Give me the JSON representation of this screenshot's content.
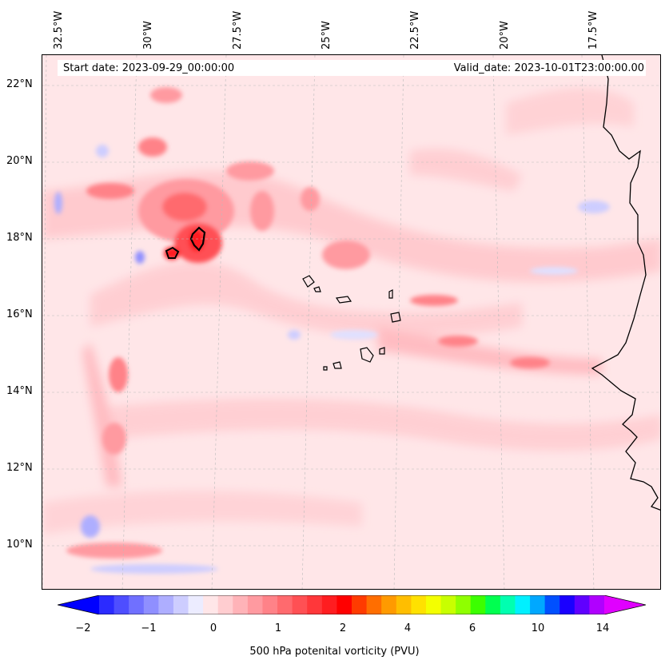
{
  "map": {
    "start_date": "Start date: 2023-09-29_00:00:00",
    "valid_date": "Valid_date: 2023-10-01T23:00:00.00",
    "lon_labels": [
      "32.5°W",
      "30°W",
      "27.5°W",
      "25°W",
      "22.5°W",
      "20°W",
      "17.5°W"
    ],
    "lat_labels": [
      "22°N",
      "20°N",
      "18°N",
      "16°N",
      "14°N",
      "12°N",
      "10°N"
    ],
    "colorbar": {
      "title": "500 hPa potenital vorticity (PVU)",
      "ticks": [
        "−2",
        "−1",
        "0",
        "1",
        "2",
        "4",
        "6",
        "10",
        "14"
      ],
      "colors": [
        "#0000ff",
        "#2b2bff",
        "#4e4eff",
        "#7070ff",
        "#8f8fff",
        "#aeaeff",
        "#cdcdff",
        "#ececff",
        "#ffe6e8",
        "#ffcdd0",
        "#ffb3b8",
        "#ff9aa0",
        "#ff8288",
        "#ff6a6e",
        "#ff5054",
        "#ff373a",
        "#ff1d20",
        "#ff0000",
        "#ff3b00",
        "#ff6e00",
        "#ff9a00",
        "#ffbe00",
        "#ffe100",
        "#f4ff00",
        "#c8ff00",
        "#8fff00",
        "#3cff00",
        "#00ff50",
        "#00ffb0",
        "#00f0ff",
        "#00a8ff",
        "#0050ff",
        "#1a00ff",
        "#6000ff",
        "#b000ff",
        "#e000ff"
      ]
    }
  }
}
